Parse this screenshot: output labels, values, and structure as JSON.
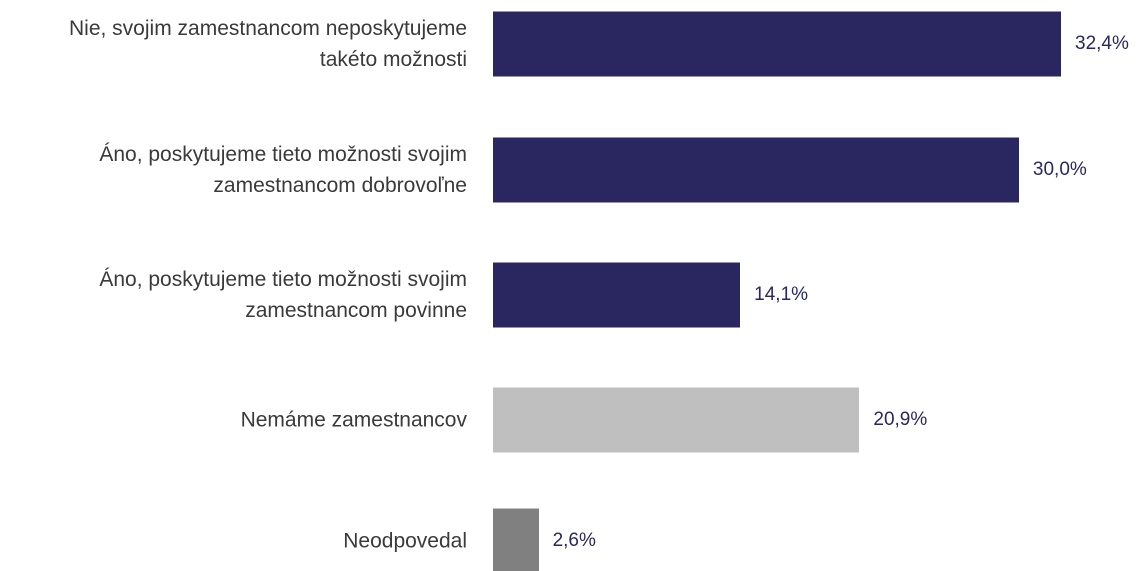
{
  "chart_data": {
    "type": "bar",
    "orientation": "horizontal",
    "categories": [
      "Nie, svojim zamestnancom neposkytujeme\ntakéto možnosti",
      "Áno, poskytujeme tieto možnosti svojim\nzamestnancom dobrovoľne",
      "Áno, poskytujeme tieto možnosti svojim\nzamestnancom povinne",
      "Nemáme zamestnancov",
      "Neodpovedal"
    ],
    "values": [
      32.4,
      30.0,
      14.1,
      20.9,
      2.6
    ],
    "value_labels": [
      "32,4%",
      "30,0%",
      "14,1%",
      "20,9%",
      "2,6%"
    ],
    "colors": [
      "#2a2660",
      "#2a2660",
      "#2a2660",
      "#bfbfbf",
      "#808080"
    ]
  }
}
